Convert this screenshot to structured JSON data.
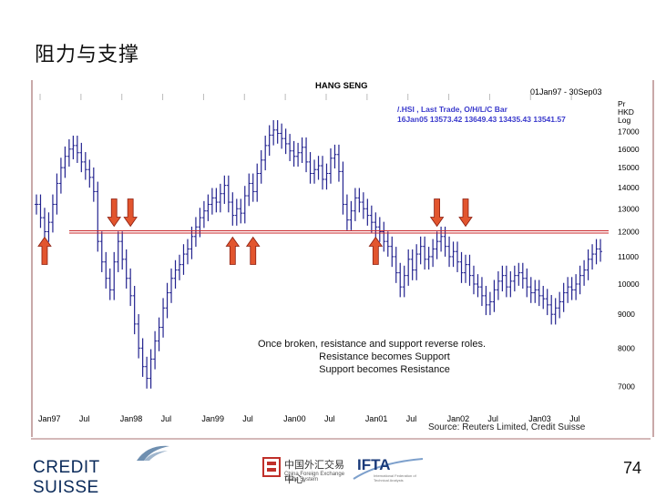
{
  "slide": {
    "title": "阻力与支撑",
    "page_number": "74"
  },
  "chart_data": {
    "type": "bar",
    "subtype": "ohlc",
    "title": "HANG SENG",
    "date_range": "01Jan97 - 30Sep03",
    "instrument": "/.HSI , Last Trade, O/H/L/C Bar",
    "last_quote": "16Jan05 13573.42 13649.43 13435.43 13541.57",
    "units": [
      "Pr",
      "HKD",
      "Log"
    ],
    "y_scale": "log",
    "ylim": [
      6600,
      18500
    ],
    "y_ticks": [
      7000,
      8000,
      9000,
      10000,
      11000,
      12000,
      13000,
      14000,
      15000,
      16000,
      17000
    ],
    "x_ticks": [
      "Jan97",
      "Jul",
      "Jan98",
      "Jul",
      "Jan99",
      "Jul",
      "Jan00",
      "Jul",
      "Jan01",
      "Jul",
      "Jan02",
      "Jul",
      "Jan03",
      "Jul"
    ],
    "support_resistance_level": 12000,
    "annotations": [
      "Once broken, resistance and support reverse roles.",
      "Resistance becomes Support",
      "Support becomes Resistance"
    ],
    "arrows": [
      {
        "direction": "up",
        "x_index": 0.2
      },
      {
        "direction": "down",
        "x_index": 1.9
      },
      {
        "direction": "down",
        "x_index": 2.3
      },
      {
        "direction": "up",
        "x_index": 4.8
      },
      {
        "direction": "up",
        "x_index": 5.3
      },
      {
        "direction": "up",
        "x_index": 8.3
      },
      {
        "direction": "down",
        "x_index": 9.8
      },
      {
        "direction": "down",
        "x_index": 10.5
      }
    ],
    "series": [
      {
        "x": [
          0,
          0.1,
          0.2,
          0.3,
          0.4,
          0.5,
          0.6,
          0.7,
          0.8,
          0.9,
          1.0,
          1.1,
          1.2,
          1.3,
          1.4,
          1.5,
          1.6,
          1.7,
          1.8,
          1.9,
          2.0,
          2.1,
          2.2,
          2.3,
          2.4,
          2.5,
          2.6,
          2.7,
          2.8,
          2.9,
          3.0,
          3.1,
          3.2,
          3.3,
          3.4,
          3.5,
          3.6,
          3.7,
          3.8,
          3.9,
          4.0,
          4.1,
          4.2,
          4.3,
          4.4,
          4.5,
          4.6,
          4.7,
          4.8,
          4.9,
          5.0,
          5.1,
          5.2,
          5.3,
          5.4,
          5.5,
          5.6,
          5.7,
          5.8,
          5.9,
          6.0,
          6.1,
          6.2,
          6.3,
          6.4,
          6.5,
          6.6,
          6.7,
          6.8,
          6.9,
          7.0,
          7.1,
          7.2,
          7.3,
          7.4,
          7.5,
          7.6,
          7.7,
          7.8,
          7.9,
          8.0,
          8.1,
          8.2,
          8.3,
          8.4,
          8.5,
          8.6,
          8.7,
          8.8,
          8.9,
          9.0,
          9.1,
          9.2,
          9.3,
          9.4,
          9.5,
          9.6,
          9.7,
          9.8,
          9.9,
          10.0,
          10.1,
          10.2,
          10.3,
          10.4,
          10.5,
          10.6,
          10.7,
          10.8,
          10.9,
          11.0,
          11.1,
          11.2,
          11.3,
          11.4,
          11.5,
          11.6,
          11.7,
          11.8,
          11.9,
          12.0,
          12.1,
          12.2,
          12.3,
          12.4,
          12.5,
          12.6,
          12.7,
          12.8,
          12.9,
          13.0,
          13.1,
          13.2,
          13.3,
          13.4,
          13.5,
          13.6,
          13.7,
          13.8
        ],
        "close": [
          13200,
          12600,
          12000,
          12400,
          13200,
          14200,
          15000,
          15600,
          16000,
          16200,
          15800,
          15300,
          14900,
          14500,
          13800,
          11600,
          10800,
          10200,
          9800,
          10800,
          11600,
          10900,
          10200,
          9600,
          8700,
          8000,
          7500,
          7200,
          7700,
          8200,
          8600,
          9200,
          9700,
          10200,
          10500,
          10700,
          11100,
          11300,
          11800,
          12200,
          12600,
          12900,
          13200,
          13500,
          13300,
          13700,
          14100,
          13300,
          12700,
          13000,
          12800,
          13600,
          14200,
          13800,
          14700,
          15400,
          16200,
          16800,
          17100,
          16900,
          16600,
          16300,
          15900,
          15600,
          15800,
          16100,
          15300,
          14700,
          14900,
          15100,
          14400,
          14700,
          15500,
          15700,
          14800,
          13200,
          12500,
          12900,
          13500,
          13300,
          13000,
          12700,
          12400,
          12200,
          12000,
          11600,
          11400,
          11000,
          10400,
          9900,
          10300,
          10900,
          10500,
          11100,
          11400,
          10900,
          11000,
          11300,
          11600,
          11800,
          11400,
          11000,
          11200,
          10800,
          10400,
          10700,
          10300,
          10000,
          9900,
          9600,
          9300,
          9400,
          9800,
          10100,
          10300,
          9900,
          10100,
          10300,
          10400,
          10200,
          9900,
          9700,
          9800,
          9600,
          9500,
          9300,
          9000,
          9200,
          9400,
          9700,
          9900,
          9800,
          10000,
          10300,
          10500,
          10900,
          11100,
          11300,
          11200
        ]
      }
    ]
  },
  "source_text": "Source: Reuters Limited, Credit Suisse",
  "logos": {
    "credit_suisse": "CREDIT SUISSE",
    "chinese_logo_name": "中国外汇交易中心",
    "chinese_logo_sub": "China Foreign Exchange Trade System",
    "ifta": "IFTA",
    "ifta_sub": "International Federation of Technical Analysts"
  }
}
